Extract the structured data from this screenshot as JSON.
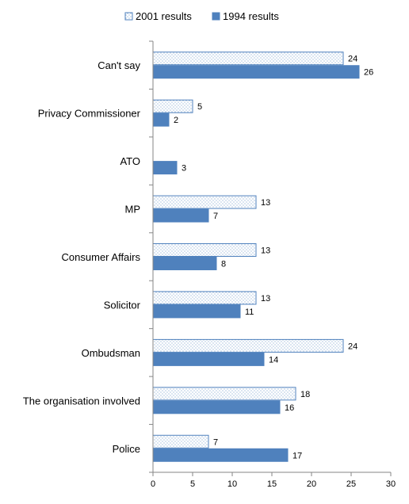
{
  "chart_data": {
    "type": "bar",
    "orientation": "horizontal",
    "categories": [
      "Can't say",
      "Privacy Commissioner",
      "ATO",
      "MP",
      "Consumer Affairs",
      "Solicitor",
      "Ombudsman",
      "The organisation involved",
      "Police"
    ],
    "series": [
      {
        "name": "2001 results",
        "values": [
          24,
          5,
          null,
          13,
          13,
          13,
          24,
          18,
          7
        ],
        "color": "#4f81bd",
        "fill": "dotted"
      },
      {
        "name": "1994 results",
        "values": [
          26,
          2,
          3,
          7,
          8,
          11,
          14,
          16,
          17
        ],
        "color": "#4f81bd",
        "fill": "solid"
      }
    ],
    "xlim": [
      0,
      30
    ],
    "xticks": [
      0,
      5,
      10,
      15,
      20,
      25,
      30
    ],
    "legend_position": "top",
    "grid": false,
    "data_labels": true
  }
}
